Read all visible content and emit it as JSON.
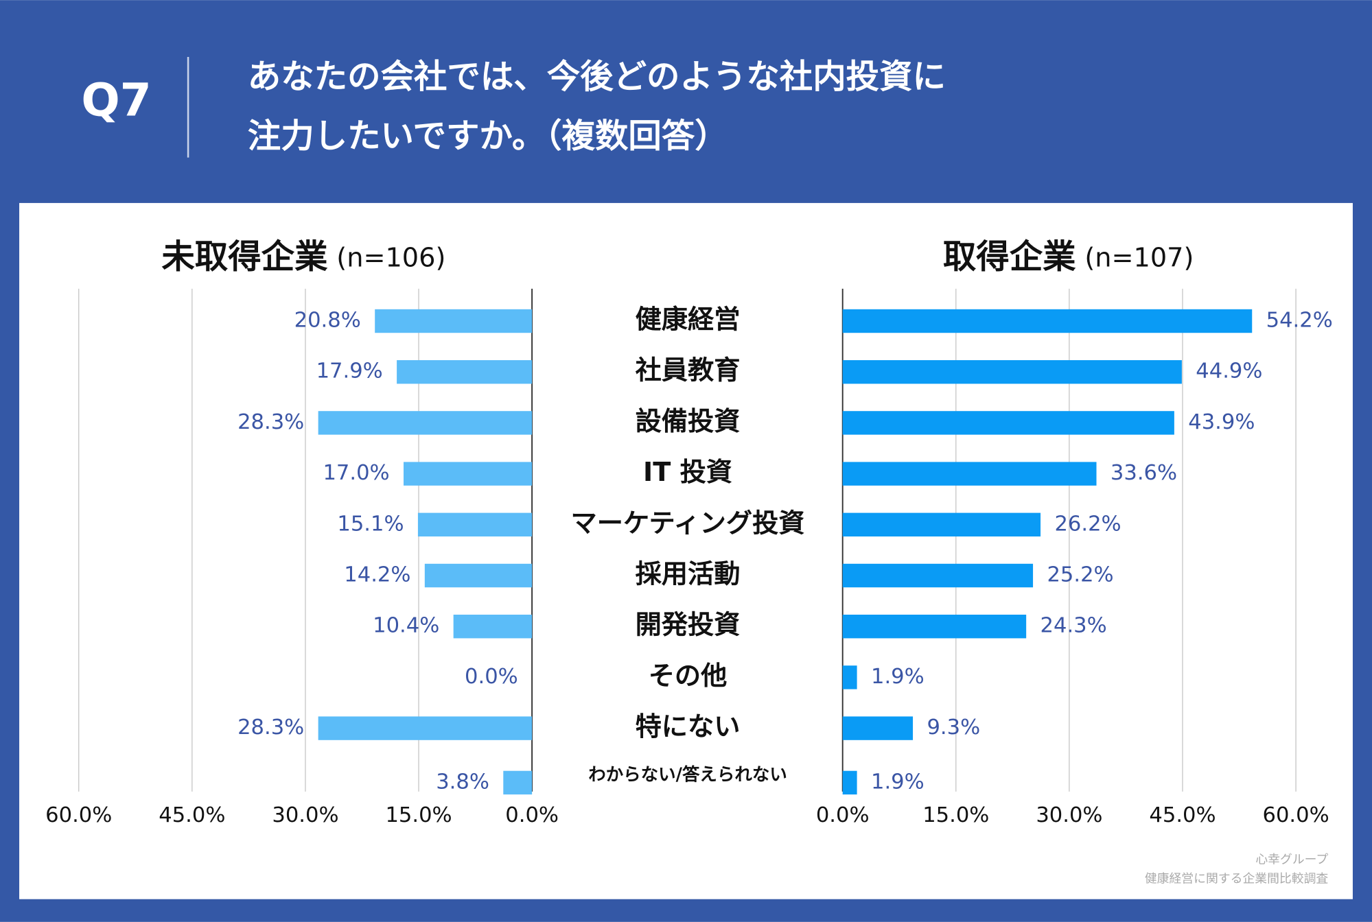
{
  "header": {
    "label": "Q7",
    "question": [
      "あなたの会社では、今後どのような社内投資に",
      "注力したいですか。（複数回答）"
    ]
  },
  "footer": [
    "心幸グループ",
    "健康経営に関する企業間比較調査"
  ],
  "chart_data": [
    {
      "type": "bar",
      "orientation": "horizontal",
      "title": "未取得企業",
      "subtitle": "(n=106)",
      "categories": [
        "健康経営",
        "社員教育",
        "設備投資",
        "IT 投資",
        "マーケティング投資",
        "採用活動",
        "開発投資",
        "その他",
        "特にない",
        "わからない/答えられない"
      ],
      "values": [
        20.8,
        17.9,
        28.3,
        17.0,
        15.1,
        14.2,
        10.4,
        0.0,
        28.3,
        3.8
      ],
      "value_labels": [
        "20.8%",
        "17.9%",
        "28.3%",
        "17.0%",
        "15.1%",
        "14.2%",
        "10.4%",
        "0.0%",
        "28.3%",
        "3.8%"
      ],
      "color": "#5bbcf8",
      "xlim": [
        60,
        0
      ],
      "xticks": [
        {
          "value": 60,
          "label": "60.0%"
        },
        {
          "value": 45,
          "label": "45.0%"
        },
        {
          "value": 30,
          "label": "30.0%"
        },
        {
          "value": 15,
          "label": "15.0%"
        },
        {
          "value": 0,
          "label": "0.0%"
        }
      ],
      "grid": true
    },
    {
      "type": "bar",
      "orientation": "horizontal",
      "title": "取得企業",
      "subtitle": "(n=107)",
      "values": [
        54.2,
        44.9,
        43.9,
        33.6,
        26.2,
        25.2,
        24.3,
        1.9,
        9.3,
        1.9
      ],
      "value_labels": [
        "54.2%",
        "44.9%",
        "43.9%",
        "33.6%",
        "26.2%",
        "25.2%",
        "24.3%",
        "1.9%",
        "9.3%",
        "1.9%"
      ],
      "color": "#0a9bf5",
      "xlim": [
        0,
        60
      ],
      "xticks": [
        {
          "value": 0,
          "label": "0.0%"
        },
        {
          "value": 15,
          "label": "15.0%"
        },
        {
          "value": 30,
          "label": "30.0%"
        },
        {
          "value": 45,
          "label": "45.0%"
        },
        {
          "value": 60,
          "label": "60.0%"
        }
      ],
      "grid": true
    }
  ]
}
